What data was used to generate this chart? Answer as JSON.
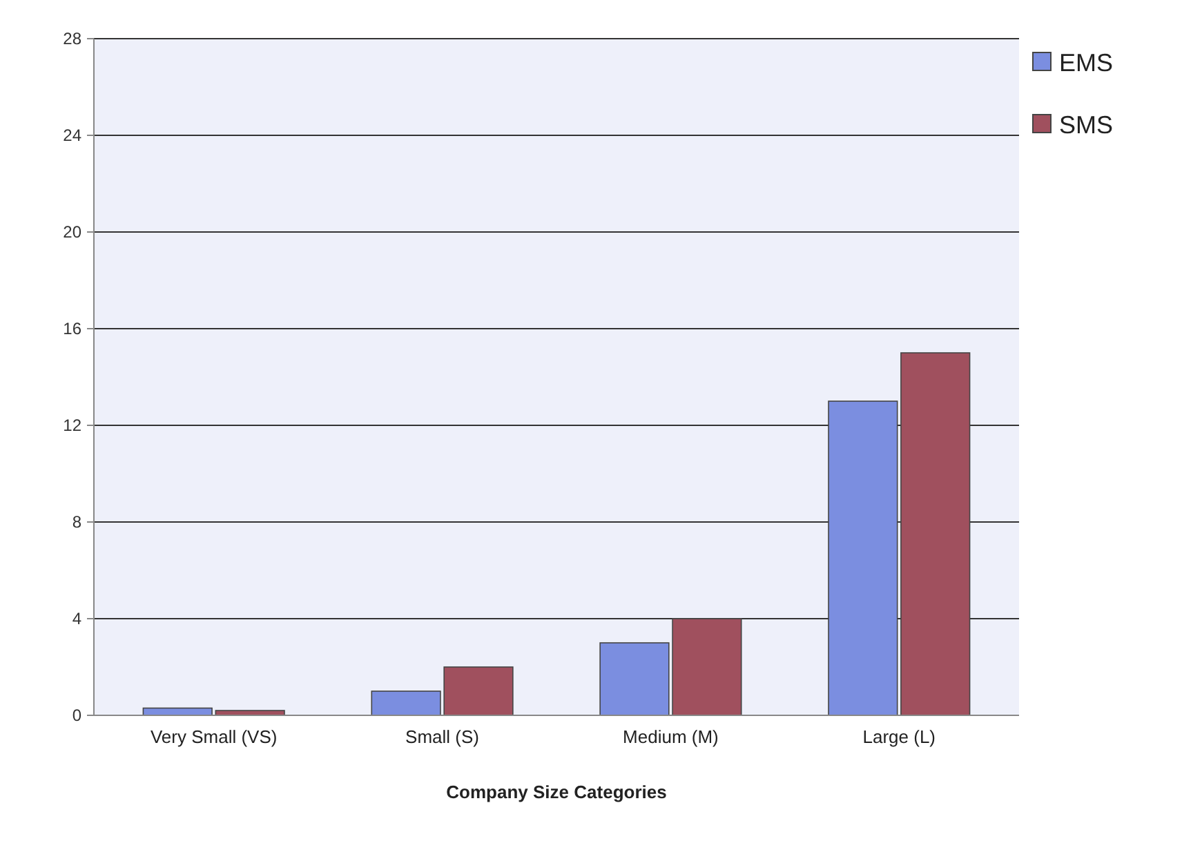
{
  "chart_data": {
    "type": "bar",
    "xlabel": "Company Size Categories",
    "categories": [
      "Very Small (VS)",
      "Small (S)",
      "Medium (M)",
      "Large (L)"
    ],
    "series": [
      {
        "name": "EMS",
        "color": "#7b8ee0",
        "values": [
          0.3,
          1,
          3,
          13
        ]
      },
      {
        "name": "SMS",
        "color": "#a0505e",
        "values": [
          0.2,
          2,
          4,
          15
        ]
      }
    ],
    "ylim": [
      0,
      28
    ],
    "yticks": [
      0,
      4,
      8,
      12,
      16,
      20,
      24,
      28
    ],
    "grid": "y",
    "legend": "top right"
  }
}
